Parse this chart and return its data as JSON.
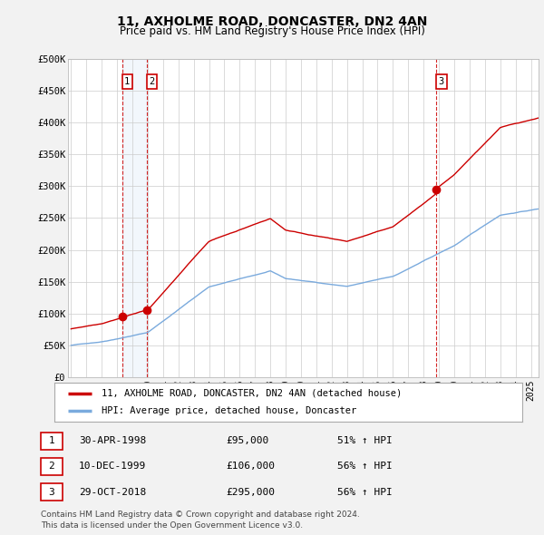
{
  "title": "11, AXHOLME ROAD, DONCASTER, DN2 4AN",
  "subtitle": "Price paid vs. HM Land Registry's House Price Index (HPI)",
  "ylabel_ticks": [
    "£0",
    "£50K",
    "£100K",
    "£150K",
    "£200K",
    "£250K",
    "£300K",
    "£350K",
    "£400K",
    "£450K",
    "£500K"
  ],
  "ytick_values": [
    0,
    50000,
    100000,
    150000,
    200000,
    250000,
    300000,
    350000,
    400000,
    450000,
    500000
  ],
  "xlim_start": 1994.8,
  "xlim_end": 2025.5,
  "ylim": [
    0,
    500000
  ],
  "transaction_color": "#cc0000",
  "hpi_color": "#7aaadd",
  "vline_color": "#cc0000",
  "vline_fill": "#ddeeff",
  "grid_color": "#cccccc",
  "background_color": "#f2f2f2",
  "plot_bg_color": "#ffffff",
  "transactions": [
    {
      "date": 1998.33,
      "price": 95000,
      "label": "1"
    },
    {
      "date": 1999.94,
      "price": 106000,
      "label": "2"
    },
    {
      "date": 2018.83,
      "price": 295000,
      "label": "3"
    }
  ],
  "legend_label_red": "11, AXHOLME ROAD, DONCASTER, DN2 4AN (detached house)",
  "legend_label_blue": "HPI: Average price, detached house, Doncaster",
  "table_rows": [
    {
      "num": "1",
      "date": "30-APR-1998",
      "price": "£95,000",
      "pct": "51% ↑ HPI"
    },
    {
      "num": "2",
      "date": "10-DEC-1999",
      "price": "£106,000",
      "pct": "56% ↑ HPI"
    },
    {
      "num": "3",
      "date": "29-OCT-2018",
      "price": "£295,000",
      "pct": "56% ↑ HPI"
    }
  ],
  "footer": "Contains HM Land Registry data © Crown copyright and database right 2024.\nThis data is licensed under the Open Government Licence v3.0."
}
